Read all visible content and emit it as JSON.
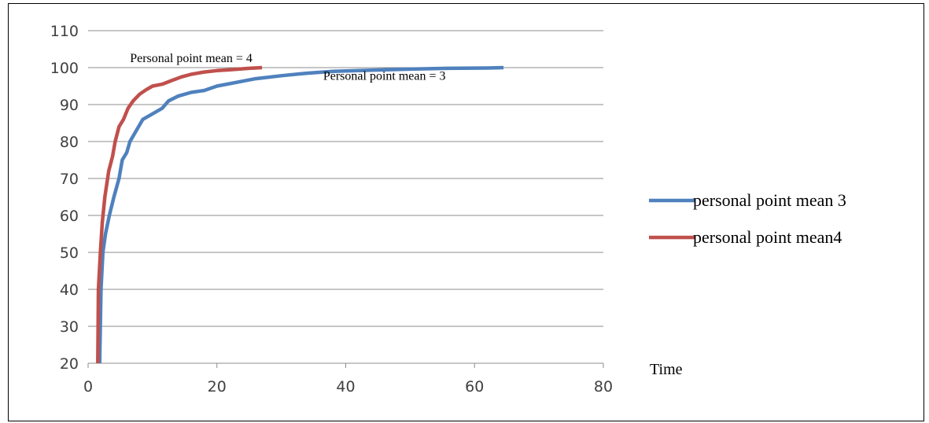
{
  "chart_data": {
    "type": "line",
    "title": "",
    "xlabel": "Time",
    "ylabel": "",
    "xlim": [
      0,
      80
    ],
    "ylim": [
      20,
      110
    ],
    "x_ticks": [
      0,
      20,
      40,
      60,
      80
    ],
    "y_ticks": [
      20,
      30,
      40,
      50,
      60,
      70,
      80,
      90,
      100,
      110
    ],
    "grid": "horizontal",
    "legend_position": "right",
    "series": [
      {
        "name": "personal point mean 3",
        "color": "#4f81bd",
        "points": [
          [
            1.8,
            20
          ],
          [
            2,
            40
          ],
          [
            2.3,
            50
          ],
          [
            2.7,
            55
          ],
          [
            3.3,
            60
          ],
          [
            4,
            65
          ],
          [
            4.8,
            70
          ],
          [
            5.3,
            75
          ],
          [
            6,
            77
          ],
          [
            6.5,
            80
          ],
          [
            7.5,
            83
          ],
          [
            8.5,
            86
          ],
          [
            10,
            87.5
          ],
          [
            11.5,
            89
          ],
          [
            12.5,
            91
          ],
          [
            14,
            92.3
          ],
          [
            16,
            93.3
          ],
          [
            18,
            93.8
          ],
          [
            20,
            95
          ],
          [
            23,
            96
          ],
          [
            26,
            97
          ],
          [
            30,
            97.8
          ],
          [
            34,
            98.5
          ],
          [
            38,
            99
          ],
          [
            44,
            99.3
          ],
          [
            50,
            99.6
          ],
          [
            56,
            99.8
          ],
          [
            62,
            99.9
          ],
          [
            64.5,
            100
          ]
        ]
      },
      {
        "name": "personal point mean4",
        "color": "#c0504d",
        "points": [
          [
            1.5,
            20
          ],
          [
            1.6,
            40
          ],
          [
            1.9,
            50
          ],
          [
            2.2,
            58
          ],
          [
            2.6,
            65
          ],
          [
            3.2,
            72
          ],
          [
            3.8,
            76
          ],
          [
            4.2,
            80
          ],
          [
            4.8,
            84
          ],
          [
            5.5,
            86
          ],
          [
            6.2,
            89
          ],
          [
            7,
            91
          ],
          [
            8,
            92.8
          ],
          [
            9,
            94
          ],
          [
            10,
            95
          ],
          [
            11.5,
            95.5
          ],
          [
            13,
            96.5
          ],
          [
            14.5,
            97.5
          ],
          [
            16,
            98.2
          ],
          [
            18,
            98.8
          ],
          [
            20,
            99.2
          ],
          [
            22,
            99.4
          ],
          [
            25,
            99.8
          ],
          [
            27,
            100
          ]
        ]
      }
    ],
    "annotations": [
      {
        "text": "Personal point mean = 4",
        "x": 6.5,
        "y": 101.5
      },
      {
        "text": "Personal point mean = 3",
        "x": 36.5,
        "y": 96.7
      }
    ]
  }
}
